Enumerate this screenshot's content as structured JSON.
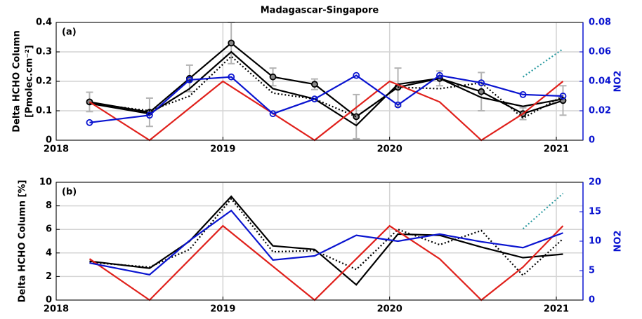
{
  "chart_data": [
    {
      "type": "line",
      "title": "Madagascar-Singapore",
      "panel_label": "(a)",
      "ylabel": [
        "Delta HCHO Column",
        "[Pmolec.cm⁻²]"
      ],
      "y2label": "NO2",
      "x": [
        2018.2,
        2018.56,
        2018.8,
        2019.05,
        2019.3,
        2019.55,
        2019.8,
        2020.05,
        2020.3,
        2020.55,
        2020.8,
        2021.04
      ],
      "xlim": [
        2018,
        2021.16
      ],
      "xticks": [
        2018,
        2019,
        2020,
        2021
      ],
      "ylim": [
        0,
        0.4
      ],
      "yticks": [
        0,
        0.1,
        0.2,
        0.3,
        0.4
      ],
      "y2lim": [
        0,
        0.08
      ],
      "y2ticks": [
        0,
        0.02,
        0.04,
        0.06,
        0.08
      ],
      "grid": true,
      "y2color": "#0a14d0",
      "series": [
        {
          "color": "#000000",
          "style": "solid",
          "marker": "circle",
          "values": [
            0.13,
            0.095,
            0.21,
            0.33,
            0.215,
            0.19,
            0.08,
            0.18,
            0.21,
            0.165,
            0.09,
            0.135
          ],
          "errors": [
            0.033,
            0.048,
            0.045,
            0.07,
            0.03,
            0.018,
            0.075,
            0.065,
            0.025,
            0.065,
            0.02,
            0.05
          ],
          "error_color": "#b4b4b4"
        },
        {
          "color": "#000000",
          "style": "solid",
          "values": [
            0.125,
            0.09,
            0.175,
            0.3,
            0.175,
            0.14,
            0.05,
            0.19,
            0.21,
            0.145,
            0.115,
            0.14
          ]
        },
        {
          "color": "#000000",
          "style": "dotted",
          "values": [
            0.125,
            0.1,
            0.15,
            0.285,
            0.16,
            0.14,
            0.08,
            0.18,
            0.175,
            0.195,
            0.075,
            0.15
          ]
        },
        {
          "color": "#e0201b",
          "style": "solid",
          "x": [
            2018.2,
            2018.56,
            2019.0,
            2019.55,
            2020.0,
            2020.3,
            2020.55,
            2020.8,
            2021.04
          ],
          "values": [
            0.13,
            0,
            0.2,
            0,
            0.2,
            0.13,
            0,
            0.09,
            0.2
          ]
        },
        {
          "color": "#0a14d0",
          "style": "solid",
          "marker": "circle",
          "axis": "y2",
          "values": [
            0.012,
            0.017,
            0.041,
            0.043,
            0.018,
            0.028,
            0.044,
            0.024,
            0.044,
            0.039,
            0.031,
            0.03
          ]
        },
        {
          "color": "#2a9aa0",
          "style": "dotted",
          "axis": "y2",
          "x": [
            2020.8,
            2021.04
          ],
          "values": [
            0.043,
            0.062
          ]
        }
      ]
    },
    {
      "type": "line",
      "panel_label": "(b)",
      "ylabel": [
        "Delta HCHO Column [%]"
      ],
      "y2label": "NO2",
      "x": [
        2018.2,
        2018.56,
        2018.8,
        2019.05,
        2019.3,
        2019.55,
        2019.8,
        2020.05,
        2020.3,
        2020.55,
        2020.8,
        2021.04
      ],
      "xlim": [
        2018,
        2021.16
      ],
      "xticks": [
        2018,
        2019,
        2020,
        2021
      ],
      "ylim": [
        0,
        10
      ],
      "yticks": [
        0,
        2,
        4,
        6,
        8,
        10
      ],
      "y2lim": [
        0,
        20
      ],
      "y2ticks": [
        0,
        5,
        10,
        15,
        20
      ],
      "grid": true,
      "y2color": "#0a14d0",
      "series": [
        {
          "color": "#000000",
          "style": "solid",
          "values": [
            3.3,
            2.7,
            5.0,
            8.8,
            4.6,
            4.3,
            1.3,
            5.6,
            5.5,
            4.5,
            3.6,
            3.9
          ]
        },
        {
          "color": "#000000",
          "style": "dotted",
          "values": [
            3.2,
            2.8,
            4.3,
            8.6,
            4.1,
            4.2,
            2.6,
            6.0,
            4.7,
            5.9,
            2.1,
            5.2
          ]
        },
        {
          "color": "#e0201b",
          "style": "solid",
          "x": [
            2018.2,
            2018.56,
            2019.0,
            2019.55,
            2020.0,
            2020.3,
            2020.55,
            2020.8,
            2021.04
          ],
          "values": [
            3.5,
            0,
            6.3,
            0,
            6.3,
            3.5,
            0,
            2.8,
            6.3
          ]
        },
        {
          "color": "#0a14d0",
          "style": "solid",
          "axis": "y2",
          "values": [
            6.3,
            4.3,
            10.1,
            15.2,
            6.8,
            7.5,
            11.0,
            10.0,
            11.2,
            9.9,
            8.9,
            11.4
          ]
        },
        {
          "color": "#2a9aa0",
          "style": "dotted",
          "axis": "y2",
          "x": [
            2020.8,
            2021.04
          ],
          "values": [
            12.1,
            18.1
          ]
        }
      ]
    }
  ]
}
